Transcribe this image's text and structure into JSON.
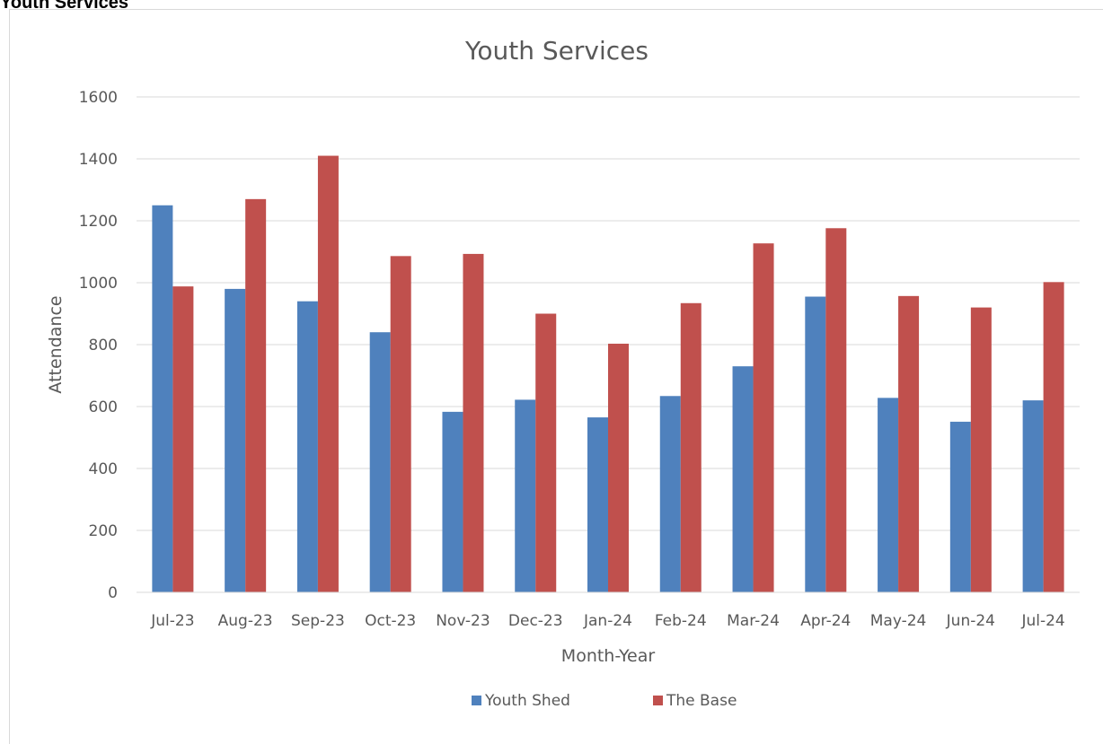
{
  "page": {
    "heading": "Youth Services"
  },
  "chart_data": {
    "type": "bar",
    "title": "Youth Services",
    "xlabel": "Month-Year",
    "ylabel": "Attendance",
    "categories": [
      "Jul-23",
      "Aug-23",
      "Sep-23",
      "Oct-23",
      "Nov-23",
      "Dec-23",
      "Jan-24",
      "Feb-24",
      "Mar-24",
      "Apr-24",
      "May-24",
      "Jun-24",
      "Jul-24"
    ],
    "series": [
      {
        "name": "Youth Shed",
        "color": "#4f81bd",
        "values": [
          1250,
          980,
          940,
          840,
          583,
          622,
          565,
          634,
          730,
          955,
          628,
          551,
          620
        ]
      },
      {
        "name": "The Base",
        "color": "#c0504d",
        "values": [
          988,
          1270,
          1410,
          1086,
          1093,
          900,
          803,
          934,
          1127,
          1176,
          957,
          920,
          1002
        ]
      }
    ],
    "ylim": [
      0,
      1600
    ],
    "yticks": [
      0,
      200,
      400,
      600,
      800,
      1000,
      1200,
      1400,
      1600
    ],
    "grid": true,
    "legend_position": "bottom"
  }
}
